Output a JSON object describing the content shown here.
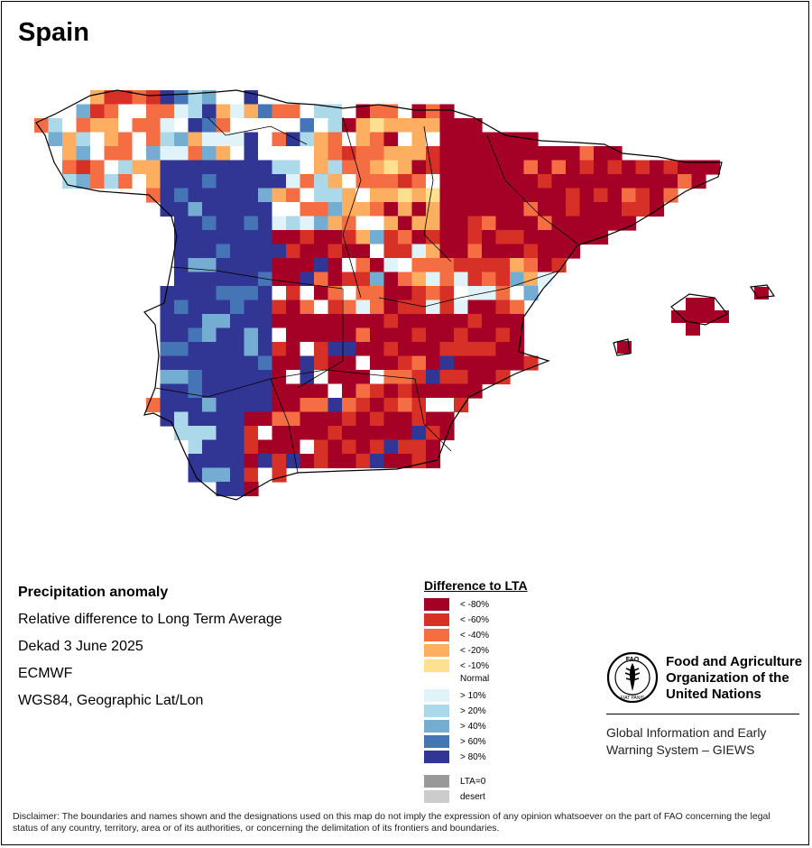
{
  "title": "Spain",
  "info": {
    "line1": "Precipitation anomaly",
    "line2": "Relative difference to Long Term Average",
    "line3": "Dekad 3 June 2025",
    "line4": "ECMWF",
    "line5": "WGS84, Geographic Lat/Lon"
  },
  "legend": {
    "title": "Difference to LTA",
    "items": [
      {
        "label": "< -80%",
        "color": "#a50026"
      },
      {
        "label": "< -60%",
        "color": "#d73027"
      },
      {
        "label": "< -40%",
        "color": "#f46d43"
      },
      {
        "label": "< -20%",
        "color": "#fdae61"
      },
      {
        "label": "< -10%",
        "color": "#fee090"
      },
      {
        "label": "Normal",
        "color": "#ffffff"
      },
      {
        "label": "> 10%",
        "color": "#e0f3f8"
      },
      {
        "label": "> 20%",
        "color": "#abd9e9"
      },
      {
        "label": "> 40%",
        "color": "#74add1"
      },
      {
        "label": "> 60%",
        "color": "#4575b4"
      },
      {
        "label": "> 80%",
        "color": "#313695"
      },
      {
        "label": "LTA=0",
        "color": "#999999"
      },
      {
        "label": "desert",
        "color": "#cccccc"
      }
    ]
  },
  "org": {
    "name_line1": "Food and Agriculture",
    "name_line2": "Organization of the",
    "name_line3": "United Nations",
    "system_line1": "Global Information and Early",
    "system_line2": "Warning System – GIEWS",
    "logo_text": "FAO",
    "logo_motto": "FIAT PANIS"
  },
  "disclaimer": "Disclaimer: The boundaries and names shown and the designations used on this map do not imply the expression of any opinion whatsoever on the part of FAO concerning the legal status of any country, territory, area or of its authorities, or concerning the delimitation of its frontiers and boundaries."
}
